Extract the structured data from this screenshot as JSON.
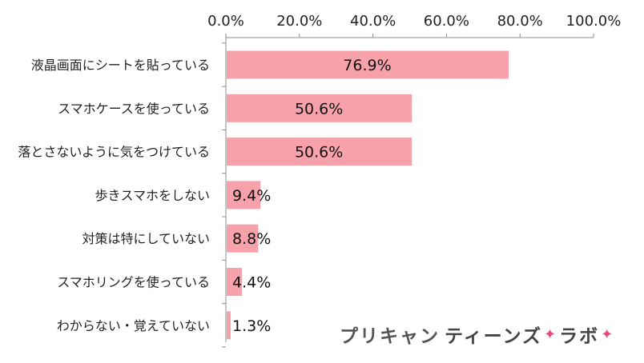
{
  "chart_data": {
    "type": "bar",
    "orientation": "horizontal",
    "categories": [
      "液晶画面にシートを貼っている",
      "スマホケースを使っている",
      "落とさないように気をつけている",
      "歩きスマホをしない",
      "対策は特にしていない",
      "スマホリングを使っている",
      "わからない・覚えていない"
    ],
    "values": [
      76.9,
      50.6,
      50.6,
      9.4,
      8.8,
      4.4,
      1.3
    ],
    "value_labels": [
      "76.9%",
      "50.6%",
      "50.6%",
      "9.4%",
      "8.8%",
      "4.4%",
      "1.3%"
    ],
    "xlim": [
      0,
      100
    ],
    "ticks": [
      0,
      20,
      40,
      60,
      80,
      100
    ],
    "tick_labels": [
      "0.0%",
      "20.0%",
      "40.0%",
      "60.0%",
      "80.0%",
      "100.0%"
    ],
    "axis_position": "top",
    "grid": false,
    "bar_color": "#f7a1ab"
  },
  "logo": {
    "part1": "プリキャン",
    "part2": "ティーンズ",
    "part3": "ラボ",
    "star": "✦"
  }
}
